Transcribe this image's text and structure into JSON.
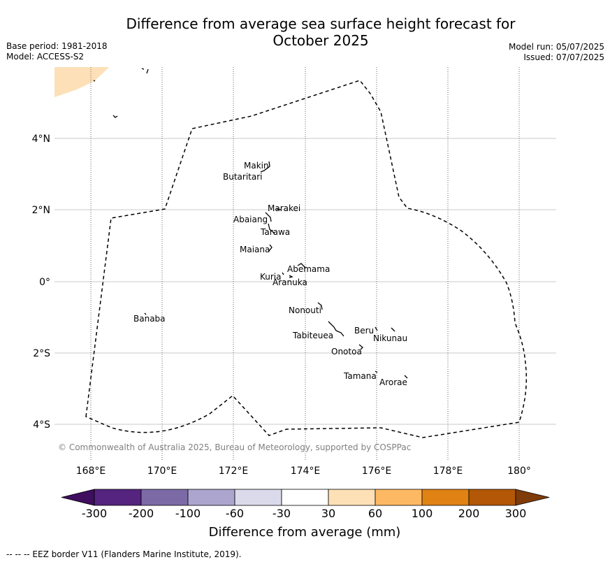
{
  "title_line1": "Difference from average sea surface height forecast for",
  "title_line2": "October 2025",
  "meta_left": [
    "Base period: 1981-2018",
    "Model: ACCESS-S2"
  ],
  "meta_right": [
    "Model run: 05/07/2025",
    "Issued: 07/07/2025"
  ],
  "lat_labels": [
    "4°N",
    "2°N",
    "0°",
    "2°S",
    "4°S"
  ],
  "lon_labels": [
    "168°E",
    "170°E",
    "172°E",
    "174°E",
    "176°E",
    "178°E",
    "180°"
  ],
  "islands": [
    "Makin",
    "Butaritari",
    "Marakei",
    "Abaiang",
    "Tarawa",
    "Maiana",
    "Abemama",
    "Kuria",
    "Aranuka",
    "Nonouti",
    "Banaba",
    "Tabiteuea",
    "Beru",
    "Nikunau",
    "Onotoa",
    "Tamana",
    "Arorae"
  ],
  "copyright": "© Commonwealth of Australia 2025, Bureau of Meteorology, supported by COSPPac",
  "colorbar": {
    "colors": [
      "#3f0e5e",
      "#54247f",
      "#7c6aa7",
      "#aca5ce",
      "#dadaeb",
      "#ffffff",
      "#fee0b6",
      "#fdb863",
      "#e08214",
      "#b35806",
      "#7f3b08"
    ],
    "labels": [
      "-300",
      "-200",
      "-100",
      "-60",
      "-30",
      "30",
      "60",
      "100",
      "200",
      "300"
    ],
    "title": "Difference from average (mm)"
  },
  "footer": "--  --  -- EEZ border V11 (Flanders Marine Institute, 2019).",
  "legend_item": "EEZ border V11 (Flanders Marine Institute, 2019).",
  "land_color": "#fde0b8"
}
